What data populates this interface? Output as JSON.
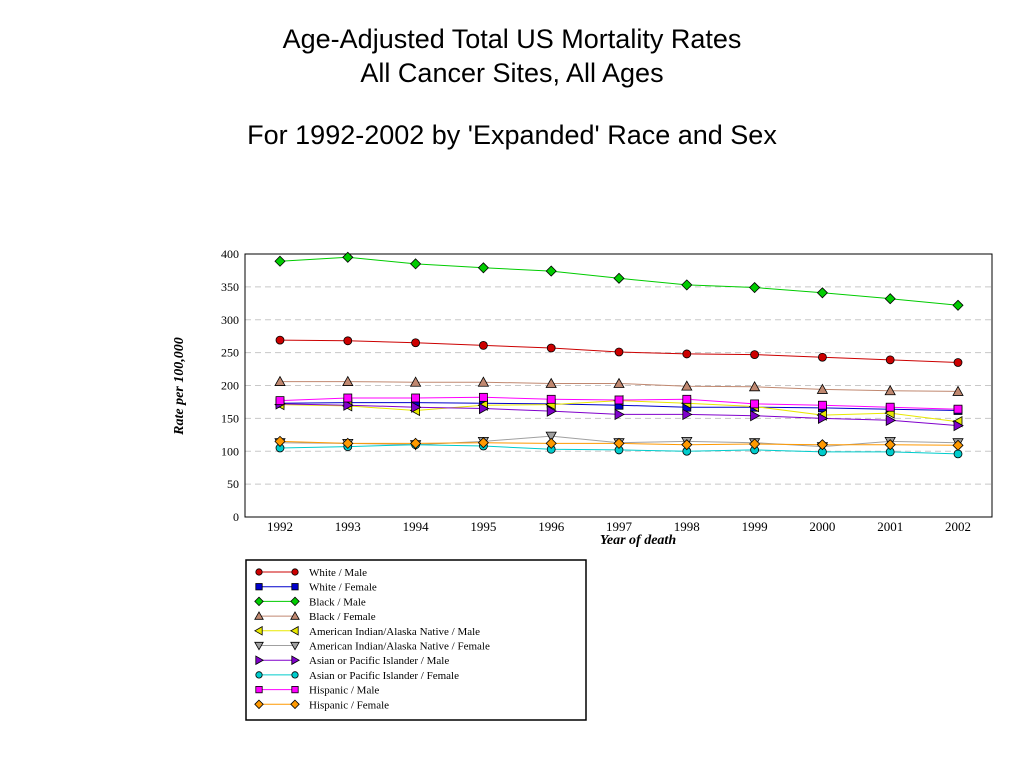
{
  "chart_data": {
    "type": "line",
    "title": "Age-Adjusted Total US Mortality Rates",
    "subtitle": "All Cancer Sites, All Ages",
    "subtitle2": "For 1992-2002 by 'Expanded' Race and Sex",
    "xlabel": "Year of death",
    "ylabel": "Rate per 100,000",
    "x": [
      "1992",
      "1993",
      "1994",
      "1995",
      "1996",
      "1997",
      "1998",
      "1999",
      "2000",
      "2001",
      "2002"
    ],
    "ylim": [
      0,
      400
    ],
    "yticks": [
      "0",
      "50",
      "100",
      "150",
      "200",
      "250",
      "300",
      "350",
      "400"
    ],
    "grid": "horizontal-dashed",
    "legend_position": "below",
    "series": [
      {
        "name": "White / Male",
        "color": "#cc0000",
        "marker": "circle",
        "values": [
          269,
          268,
          265,
          261,
          257,
          251,
          248,
          247,
          243,
          239,
          235
        ]
      },
      {
        "name": "White / Female",
        "color": "#0000cc",
        "marker": "square",
        "values": [
          173,
          174,
          174,
          173,
          172,
          170,
          167,
          167,
          166,
          164,
          162
        ]
      },
      {
        "name": "Black / Male",
        "color": "#00cc00",
        "marker": "diamond",
        "values": [
          389,
          395,
          385,
          379,
          374,
          363,
          353,
          349,
          341,
          332,
          322
        ]
      },
      {
        "name": "Black / Female",
        "color": "#c08870",
        "marker": "triangle-up",
        "values": [
          206,
          206,
          205,
          205,
          203,
          203,
          199,
          198,
          194,
          192,
          191
        ]
      },
      {
        "name": "American Indian/Alaska Native / Male",
        "color": "#e8e800",
        "marker": "triangle-left",
        "values": [
          171,
          169,
          162,
          170,
          171,
          177,
          173,
          168,
          155,
          158,
          145
        ]
      },
      {
        "name": "American Indian/Alaska Native / Female",
        "color": "#a0a0a0",
        "marker": "triangle-down",
        "values": [
          113,
          112,
          110,
          115,
          123,
          113,
          115,
          113,
          107,
          115,
          113
        ]
      },
      {
        "name": "Asian or Pacific Islander / Male",
        "color": "#8000cc",
        "marker": "triangle-right",
        "values": [
          172,
          170,
          167,
          165,
          161,
          156,
          156,
          154,
          150,
          147,
          139
        ]
      },
      {
        "name": "Asian or Pacific Islander / Female",
        "color": "#00cccc",
        "marker": "circle",
        "values": [
          105,
          107,
          110,
          108,
          103,
          102,
          100,
          102,
          99,
          99,
          96
        ]
      },
      {
        "name": "Hispanic / Male",
        "color": "#ff00ff",
        "marker": "square",
        "values": [
          177,
          181,
          181,
          182,
          179,
          178,
          179,
          172,
          170,
          167,
          164
        ]
      },
      {
        "name": "Hispanic / Female",
        "color": "#ff9900",
        "marker": "diamond",
        "values": [
          115,
          112,
          112,
          113,
          112,
          112,
          110,
          111,
          110,
          110,
          109
        ]
      }
    ]
  }
}
